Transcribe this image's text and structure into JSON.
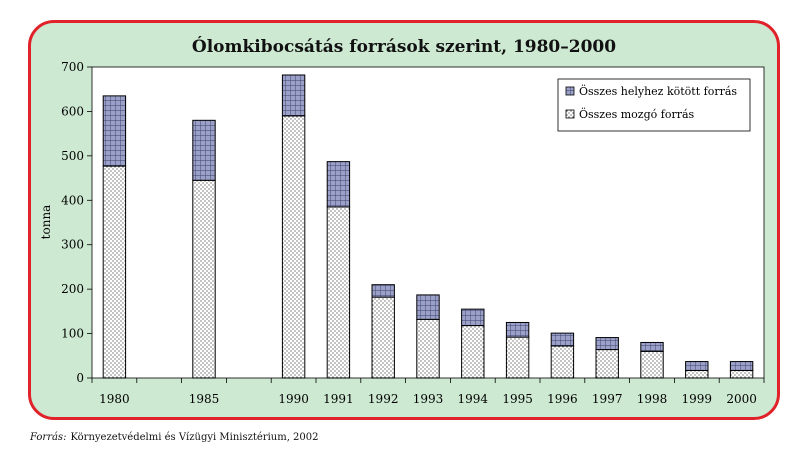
{
  "source": {
    "label": "Forrás:",
    "text": "Környezetvédelmi és Vízügyi Minisztérium, 2002"
  },
  "colors": {
    "frame_border": "#e0222a",
    "frame_fill": "#cde9d2",
    "plot_bg": "#ffffff",
    "stationary_fill": "#9aa0c8",
    "mobile_fill": "#ffffff"
  },
  "chart_data": {
    "type": "bar",
    "stacked": true,
    "title": "Ólomkibocsátás források szerint, 1980–2000",
    "xlabel": "",
    "ylabel": "tonna",
    "ylim": [
      0,
      700
    ],
    "yticks": [
      "0",
      "100",
      "200",
      "300",
      "400",
      "500",
      "600",
      "700"
    ],
    "categories": [
      "1980",
      "1985",
      "1990",
      "1991",
      "1992",
      "1993",
      "1994",
      "1995",
      "1996",
      "1997",
      "1998",
      "1999",
      "2000"
    ],
    "category_gaps_after": [
      "1980",
      "1985"
    ],
    "series": [
      {
        "name": "Összes mozgó forrás",
        "pattern": "dots",
        "values": [
          477,
          445,
          590,
          385,
          182,
          132,
          118,
          92,
          72,
          64,
          60,
          17,
          17
        ]
      },
      {
        "name": "Összes helyhez kötött forrás",
        "pattern": "crosshatch",
        "values": [
          158,
          135,
          92,
          102,
          28,
          55,
          37,
          33,
          29,
          27,
          20,
          20,
          20
        ]
      }
    ],
    "legend": {
      "position": "top-right",
      "order": [
        "Összes helyhez kötött forrás",
        "Összes mozgó forrás"
      ]
    },
    "grid": false
  }
}
